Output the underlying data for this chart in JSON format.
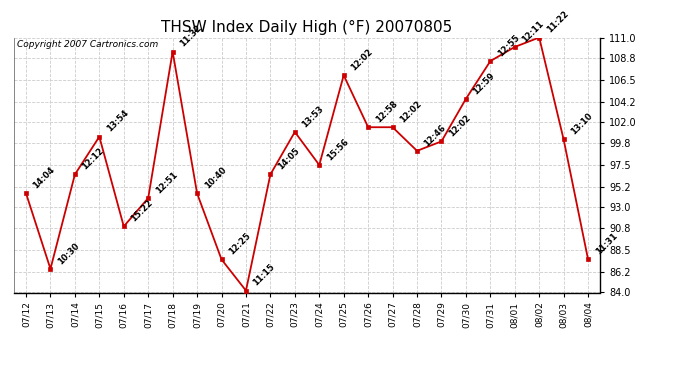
{
  "title": "THSW Index Daily High (°F) 20070805",
  "copyright": "Copyright 2007 Cartronics.com",
  "x_labels": [
    "07/12",
    "07/13",
    "07/14",
    "07/15",
    "07/16",
    "07/17",
    "07/18",
    "07/19",
    "07/20",
    "07/21",
    "07/22",
    "07/23",
    "07/24",
    "07/25",
    "07/26",
    "07/27",
    "07/28",
    "07/29",
    "07/30",
    "07/31",
    "08/01",
    "08/02",
    "08/03",
    "08/04"
  ],
  "y_values": [
    94.5,
    86.5,
    96.5,
    100.5,
    91.0,
    94.0,
    109.5,
    94.5,
    87.5,
    84.2,
    96.5,
    101.0,
    97.5,
    107.0,
    101.5,
    101.5,
    99.0,
    100.0,
    104.5,
    108.5,
    110.0,
    111.0,
    100.2,
    87.5
  ],
  "annotations": [
    "14:04",
    "10:30",
    "12:12",
    "13:54",
    "15:22",
    "12:51",
    "11:32",
    "10:40",
    "12:25",
    "11:15",
    "14:05",
    "13:53",
    "15:56",
    "12:02",
    "12:58",
    "12:02",
    "12:46",
    "12:02",
    "12:59",
    "12:55",
    "12:11",
    "11:22",
    "13:10",
    "11:31"
  ],
  "ylim_min": 84.0,
  "ylim_max": 111.0,
  "yticks": [
    84.0,
    86.2,
    88.5,
    90.8,
    93.0,
    95.2,
    97.5,
    99.8,
    102.0,
    104.2,
    106.5,
    108.8,
    111.0
  ],
  "line_color": "#cc0000",
  "marker_color": "#cc0000",
  "bg_color": "#ffffff",
  "grid_color": "#cccccc",
  "title_fontsize": 11,
  "annotation_fontsize": 6,
  "copyright_fontsize": 6.5,
  "tick_fontsize": 7,
  "xtick_fontsize": 6.5
}
